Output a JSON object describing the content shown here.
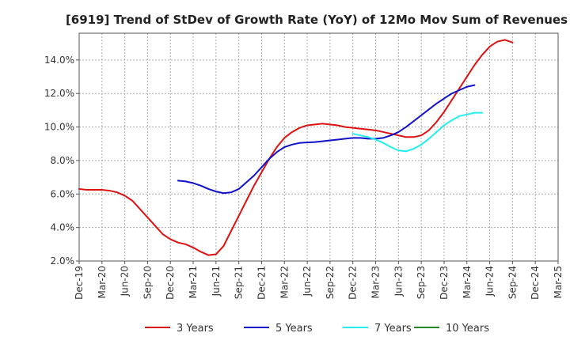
{
  "chart_data": {
    "type": "line",
    "title": "[6919]  Trend of StDev of Growth Rate (YoY) of 12Mo Mov Sum of Revenues",
    "xlabel": "",
    "ylabel": "",
    "ylim": [
      2.0,
      15.6
    ],
    "y_ticks": [
      2.0,
      4.0,
      6.0,
      8.0,
      10.0,
      12.0,
      14.0
    ],
    "y_tick_labels": [
      "2.0%",
      "4.0%",
      "6.0%",
      "8.0%",
      "10.0%",
      "12.0%",
      "14.0%"
    ],
    "x_tick_labels": [
      "Dec-19",
      "Mar-20",
      "Jun-20",
      "Sep-20",
      "Dec-20",
      "Mar-21",
      "Jun-21",
      "Sep-21",
      "Dec-21",
      "Mar-22",
      "Jun-22",
      "Sep-22",
      "Dec-22",
      "Mar-23",
      "Jun-23",
      "Sep-23",
      "Dec-23",
      "Mar-24",
      "Jun-24",
      "Sep-24",
      "Dec-24",
      "Mar-25"
    ],
    "grid": true,
    "legend_position": "bottom",
    "series": [
      {
        "name": "3 Years",
        "color": "#dd1111",
        "points": [
          [
            0,
            6.3
          ],
          [
            1,
            6.25
          ],
          [
            2,
            6.25
          ],
          [
            3,
            6.25
          ],
          [
            4,
            6.2
          ],
          [
            5,
            6.1
          ],
          [
            6,
            5.9
          ],
          [
            7,
            5.6
          ],
          [
            8,
            5.1
          ],
          [
            9,
            4.6
          ],
          [
            10,
            4.1
          ],
          [
            11,
            3.6
          ],
          [
            12,
            3.3
          ],
          [
            13,
            3.1
          ],
          [
            14,
            3.0
          ],
          [
            15,
            2.8
          ],
          [
            16,
            2.55
          ],
          [
            17,
            2.35
          ],
          [
            18,
            2.4
          ],
          [
            19,
            2.9
          ],
          [
            20,
            3.8
          ],
          [
            21,
            4.7
          ],
          [
            22,
            5.6
          ],
          [
            23,
            6.5
          ],
          [
            24,
            7.3
          ],
          [
            25,
            8.1
          ],
          [
            26,
            8.8
          ],
          [
            27,
            9.35
          ],
          [
            28,
            9.7
          ],
          [
            29,
            9.95
          ],
          [
            30,
            10.1
          ],
          [
            31,
            10.15
          ],
          [
            32,
            10.2
          ],
          [
            33,
            10.15
          ],
          [
            34,
            10.1
          ],
          [
            35,
            10.0
          ],
          [
            36,
            9.95
          ],
          [
            37,
            9.9
          ],
          [
            38,
            9.85
          ],
          [
            39,
            9.8
          ],
          [
            40,
            9.7
          ],
          [
            41,
            9.6
          ],
          [
            42,
            9.5
          ],
          [
            43,
            9.4
          ],
          [
            44,
            9.4
          ],
          [
            45,
            9.5
          ],
          [
            46,
            9.8
          ],
          [
            47,
            10.3
          ],
          [
            48,
            10.9
          ],
          [
            49,
            11.6
          ],
          [
            50,
            12.3
          ],
          [
            51,
            13.0
          ],
          [
            52,
            13.7
          ],
          [
            53,
            14.3
          ],
          [
            54,
            14.8
          ],
          [
            55,
            15.1
          ],
          [
            56,
            15.2
          ],
          [
            57,
            15.05
          ]
        ]
      },
      {
        "name": "5 Years",
        "color": "#1111cc",
        "points": [
          [
            13,
            6.8
          ],
          [
            14,
            6.75
          ],
          [
            15,
            6.65
          ],
          [
            16,
            6.5
          ],
          [
            17,
            6.3
          ],
          [
            18,
            6.15
          ],
          [
            19,
            6.05
          ],
          [
            20,
            6.1
          ],
          [
            21,
            6.3
          ],
          [
            22,
            6.7
          ],
          [
            23,
            7.1
          ],
          [
            24,
            7.6
          ],
          [
            25,
            8.1
          ],
          [
            26,
            8.5
          ],
          [
            27,
            8.8
          ],
          [
            28,
            8.95
          ],
          [
            29,
            9.05
          ],
          [
            30,
            9.08
          ],
          [
            31,
            9.1
          ],
          [
            32,
            9.15
          ],
          [
            33,
            9.2
          ],
          [
            34,
            9.25
          ],
          [
            35,
            9.3
          ],
          [
            36,
            9.35
          ],
          [
            37,
            9.35
          ],
          [
            38,
            9.3
          ],
          [
            39,
            9.3
          ],
          [
            40,
            9.35
          ],
          [
            41,
            9.5
          ],
          [
            42,
            9.7
          ],
          [
            43,
            10.0
          ],
          [
            44,
            10.35
          ],
          [
            45,
            10.7
          ],
          [
            46,
            11.05
          ],
          [
            47,
            11.4
          ],
          [
            48,
            11.7
          ],
          [
            49,
            12.0
          ],
          [
            50,
            12.2
          ],
          [
            51,
            12.4
          ],
          [
            52,
            12.5
          ]
        ]
      },
      {
        "name": "7 Years",
        "color": "#22eeee",
        "points": [
          [
            36,
            9.6
          ],
          [
            37,
            9.5
          ],
          [
            38,
            9.4
          ],
          [
            39,
            9.25
          ],
          [
            40,
            9.05
          ],
          [
            41,
            8.8
          ],
          [
            42,
            8.6
          ],
          [
            43,
            8.55
          ],
          [
            44,
            8.7
          ],
          [
            45,
            8.95
          ],
          [
            46,
            9.3
          ],
          [
            47,
            9.7
          ],
          [
            48,
            10.1
          ],
          [
            49,
            10.4
          ],
          [
            50,
            10.65
          ],
          [
            51,
            10.75
          ],
          [
            52,
            10.85
          ],
          [
            53,
            10.85
          ]
        ]
      },
      {
        "name": "10 Years",
        "color": "#228822",
        "points": []
      }
    ]
  }
}
